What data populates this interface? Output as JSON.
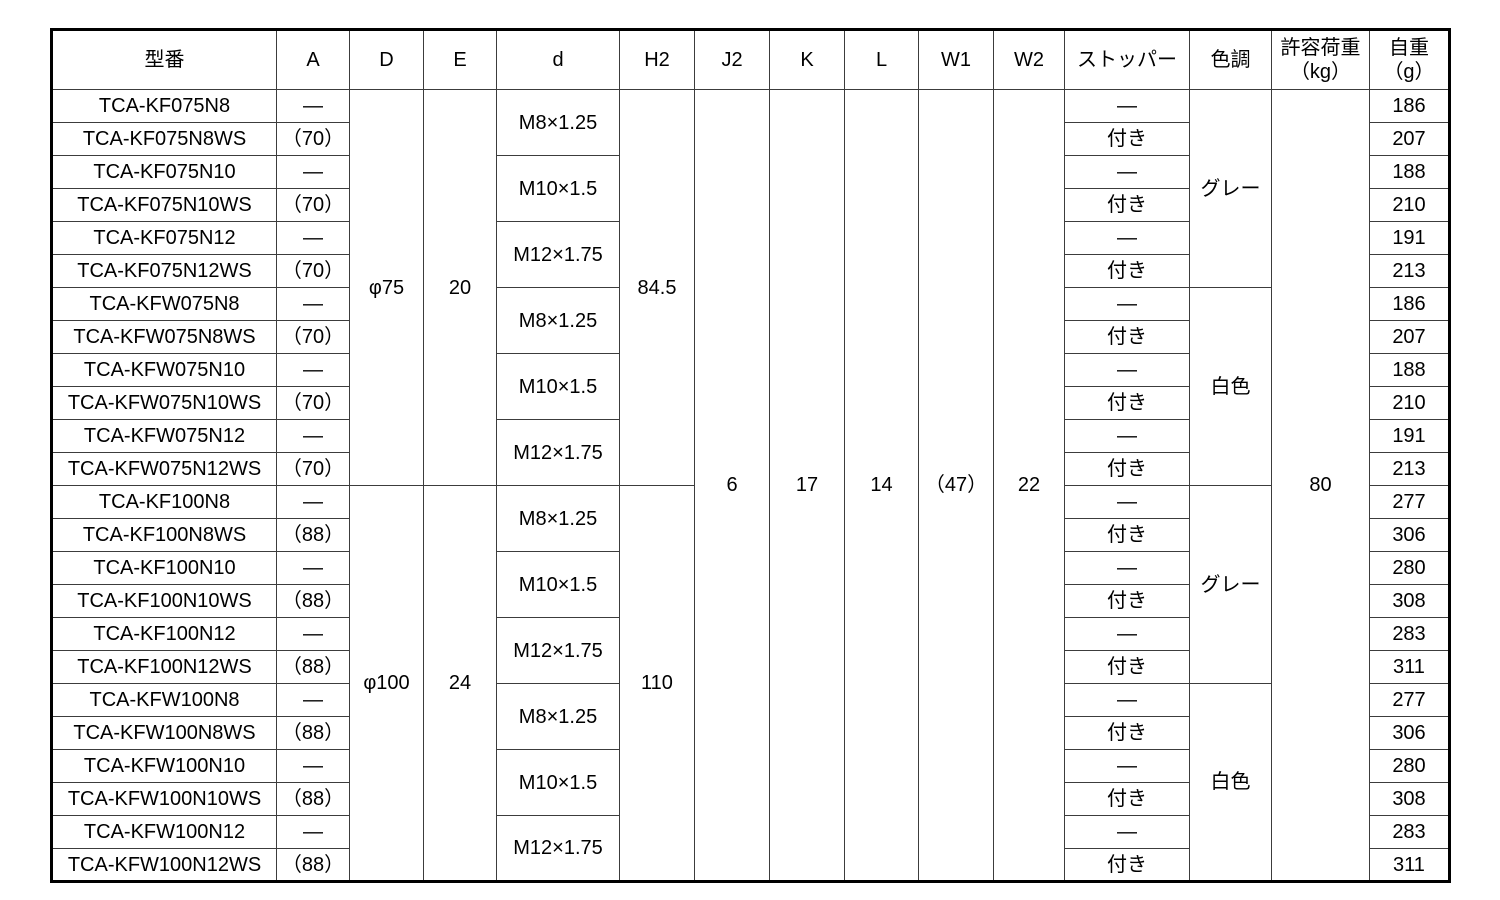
{
  "table": {
    "text_color": "#000000",
    "outer_border_color": "#000000",
    "grid_color": "#3c3c3c",
    "headers": [
      {
        "label": "型番"
      },
      {
        "label": "A"
      },
      {
        "label": "D"
      },
      {
        "label": "E"
      },
      {
        "label": "d"
      },
      {
        "label": "H2"
      },
      {
        "label": "J2"
      },
      {
        "label": "K"
      },
      {
        "label": "L"
      },
      {
        "label": "W1"
      },
      {
        "label": "W2"
      },
      {
        "label": "ストッパー"
      },
      {
        "label": "色調"
      },
      {
        "label": "許容荷重",
        "unit": "（kg）"
      },
      {
        "label": "自重",
        "unit": "（g）"
      }
    ],
    "rows": [
      {
        "model": "TCA-KF075N8",
        "a": "—",
        "stopper": "—",
        "weight": "186"
      },
      {
        "model": "TCA-KF075N8WS",
        "a": "（70）",
        "stopper": "付き",
        "weight": "207"
      },
      {
        "model": "TCA-KF075N10",
        "a": "—",
        "stopper": "—",
        "weight": "188"
      },
      {
        "model": "TCA-KF075N10WS",
        "a": "（70）",
        "stopper": "付き",
        "weight": "210"
      },
      {
        "model": "TCA-KF075N12",
        "a": "—",
        "stopper": "—",
        "weight": "191"
      },
      {
        "model": "TCA-KF075N12WS",
        "a": "（70）",
        "stopper": "付き",
        "weight": "213"
      },
      {
        "model": "TCA-KFW075N8",
        "a": "—",
        "stopper": "—",
        "weight": "186"
      },
      {
        "model": "TCA-KFW075N8WS",
        "a": "（70）",
        "stopper": "付き",
        "weight": "207"
      },
      {
        "model": "TCA-KFW075N10",
        "a": "—",
        "stopper": "—",
        "weight": "188"
      },
      {
        "model": "TCA-KFW075N10WS",
        "a": "（70）",
        "stopper": "付き",
        "weight": "210"
      },
      {
        "model": "TCA-KFW075N12",
        "a": "—",
        "stopper": "—",
        "weight": "191"
      },
      {
        "model": "TCA-KFW075N12WS",
        "a": "（70）",
        "stopper": "付き",
        "weight": "213"
      },
      {
        "model": "TCA-KF100N8",
        "a": "—",
        "stopper": "—",
        "weight": "277"
      },
      {
        "model": "TCA-KF100N8WS",
        "a": "（88）",
        "stopper": "付き",
        "weight": "306"
      },
      {
        "model": "TCA-KF100N10",
        "a": "—",
        "stopper": "—",
        "weight": "280"
      },
      {
        "model": "TCA-KF100N10WS",
        "a": "（88）",
        "stopper": "付き",
        "weight": "308"
      },
      {
        "model": "TCA-KF100N12",
        "a": "—",
        "stopper": "—",
        "weight": "283"
      },
      {
        "model": "TCA-KF100N12WS",
        "a": "（88）",
        "stopper": "付き",
        "weight": "311"
      },
      {
        "model": "TCA-KFW100N8",
        "a": "—",
        "stopper": "—",
        "weight": "277"
      },
      {
        "model": "TCA-KFW100N8WS",
        "a": "（88）",
        "stopper": "付き",
        "weight": "306"
      },
      {
        "model": "TCA-KFW100N10",
        "a": "—",
        "stopper": "—",
        "weight": "280"
      },
      {
        "model": "TCA-KFW100N10WS",
        "a": "（88）",
        "stopper": "付き",
        "weight": "308"
      },
      {
        "model": "TCA-KFW100N12",
        "a": "—",
        "stopper": "—",
        "weight": "283"
      },
      {
        "model": "TCA-KFW100N12WS",
        "a": "（88）",
        "stopper": "付き",
        "weight": "311"
      }
    ],
    "merged_columns": {
      "D": [
        {
          "value": "φ75",
          "span": 12
        },
        {
          "value": "φ100",
          "span": 12
        }
      ],
      "E": [
        {
          "value": "20",
          "span": 12
        },
        {
          "value": "24",
          "span": 12
        }
      ],
      "d": [
        {
          "value": "M8×1.25",
          "span": 2
        },
        {
          "value": "M10×1.5",
          "span": 2
        },
        {
          "value": "M12×1.75",
          "span": 2
        },
        {
          "value": "M8×1.25",
          "span": 2
        },
        {
          "value": "M10×1.5",
          "span": 2
        },
        {
          "value": "M12×1.75",
          "span": 2
        },
        {
          "value": "M8×1.25",
          "span": 2
        },
        {
          "value": "M10×1.5",
          "span": 2
        },
        {
          "value": "M12×1.75",
          "span": 2
        },
        {
          "value": "M8×1.25",
          "span": 2
        },
        {
          "value": "M10×1.5",
          "span": 2
        },
        {
          "value": "M12×1.75",
          "span": 2
        }
      ],
      "H2": [
        {
          "value": "84.5",
          "span": 12
        },
        {
          "value": "110",
          "span": 12
        }
      ],
      "J2": [
        {
          "value": "6",
          "span": 24
        }
      ],
      "K": [
        {
          "value": "17",
          "span": 24
        }
      ],
      "L": [
        {
          "value": "14",
          "span": 24
        }
      ],
      "W1": [
        {
          "value": "（47）",
          "span": 24
        }
      ],
      "W2": [
        {
          "value": "22",
          "span": 24
        }
      ],
      "color": [
        {
          "value": "グレー",
          "span": 6
        },
        {
          "value": "白色",
          "span": 6
        },
        {
          "value": "グレー",
          "span": 6
        },
        {
          "value": "白色",
          "span": 6
        }
      ],
      "load": [
        {
          "value": "80",
          "span": 24
        }
      ]
    }
  }
}
